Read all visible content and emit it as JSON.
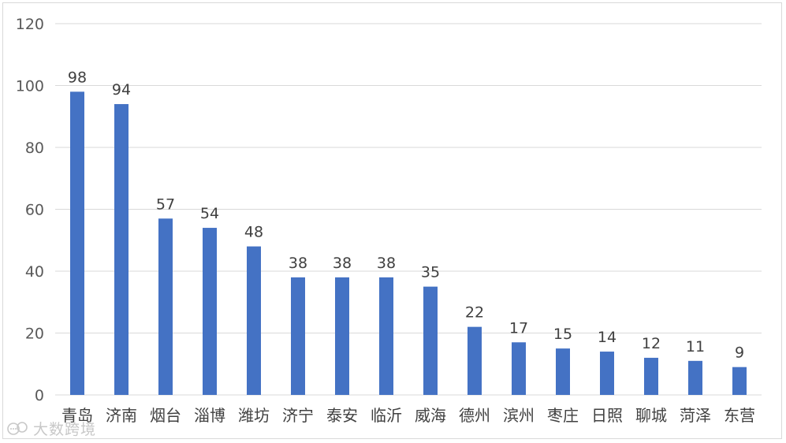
{
  "chart_data": {
    "type": "bar",
    "categories": [
      "青岛",
      "济南",
      "烟台",
      "淄博",
      "潍坊",
      "济宁",
      "泰安",
      "临沂",
      "威海",
      "德州",
      "滨州",
      "枣庄",
      "日照",
      "聊城",
      "菏泽",
      "东营"
    ],
    "values": [
      98,
      94,
      57,
      54,
      48,
      38,
      38,
      38,
      35,
      22,
      17,
      15,
      14,
      12,
      11,
      9
    ],
    "ylim": [
      0,
      120
    ],
    "yticks": [
      0,
      20,
      40,
      60,
      80,
      100,
      120
    ],
    "grid": true,
    "legend": "none",
    "bar_color": "#4472c4",
    "data_labels": true
  },
  "watermark": {
    "text": "大数跨境",
    "icon": "chat-bubbles-logo-icon"
  }
}
